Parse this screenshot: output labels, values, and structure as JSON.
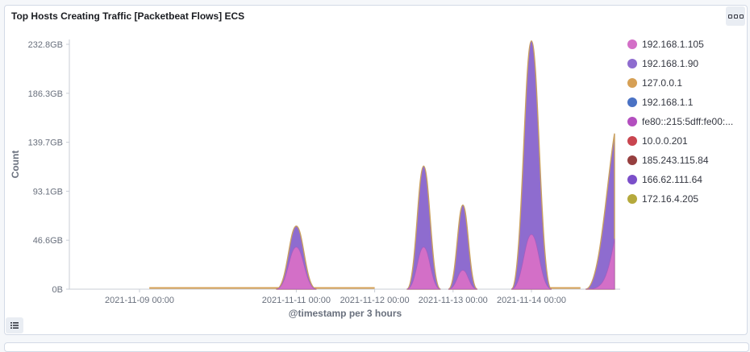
{
  "panel": {
    "title": "Top Hosts Creating Traffic [Packetbeat Flows] ECS"
  },
  "icons": {
    "options": "options-dots-icon",
    "legend_toggle": "list-icon"
  },
  "chart_data": {
    "type": "area",
    "stacked": true,
    "xlabel": "@timestamp per 3 hours",
    "ylabel": "Count",
    "x_ticks": [
      "2021-11-09 00:00",
      "2021-11-11 00:00",
      "2021-11-12 00:00",
      "2021-11-13 00:00",
      "2021-11-14 00:00"
    ],
    "y_ticks": [
      "0B",
      "46.6GB",
      "93.1GB",
      "139.7GB",
      "186.3GB",
      "232.8GB"
    ],
    "ylim_gb": [
      0,
      232.8
    ],
    "x": [
      "2021-11-08 12:00",
      "2021-11-11 00:00",
      "2021-11-12 09:00",
      "2021-11-12 15:00",
      "2021-11-13 03:00",
      "2021-11-14 00:00",
      "2021-11-15 00:00"
    ],
    "series": [
      {
        "name": "192.168.1.105",
        "color": "#d36fc7",
        "values_gb": [
          0,
          40,
          0,
          40,
          18,
          52,
          48
        ]
      },
      {
        "name": "192.168.1.90",
        "color": "#8e6ccf",
        "values_gb": [
          0,
          20,
          0,
          77,
          62,
          184,
          100
        ]
      },
      {
        "name": "127.0.0.1",
        "color": "#d6a055",
        "values_gb": [
          0,
          0,
          0,
          0,
          0,
          0,
          0
        ]
      },
      {
        "name": "192.168.1.1",
        "color": "#4a72c4",
        "values_gb": [
          0,
          0,
          0,
          0,
          0,
          0,
          0
        ]
      },
      {
        "name": "fe80::215:5dff:fe00:...",
        "color": "#b34fbf",
        "values_gb": [
          0,
          0,
          0,
          0,
          0,
          0,
          0
        ]
      },
      {
        "name": "10.0.0.201",
        "color": "#c9454f",
        "values_gb": [
          0,
          0,
          0,
          0,
          0,
          0,
          0
        ]
      },
      {
        "name": "185.243.115.84",
        "color": "#963f3f",
        "values_gb": [
          0,
          0,
          0,
          0,
          0,
          0,
          0
        ]
      },
      {
        "name": "166.62.111.64",
        "color": "#7b4fc9",
        "values_gb": [
          0,
          0,
          0,
          0,
          0,
          0,
          0
        ]
      },
      {
        "name": "172.16.4.205",
        "color": "#b5a93c",
        "values_gb": [
          0,
          0,
          0,
          0,
          0,
          0,
          0
        ]
      }
    ],
    "legend_position": "right",
    "grid": false
  }
}
